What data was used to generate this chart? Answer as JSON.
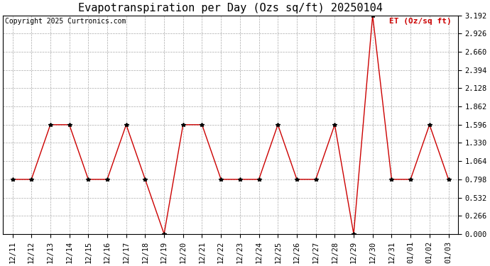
{
  "title": "Evapotranspiration per Day (Ozs sq/ft) 20250104",
  "copyright": "Copyright 2025 Curtronics.com",
  "legend_label": "ET (Oz/sq ft)",
  "dates": [
    "12/11",
    "12/12",
    "12/13",
    "12/14",
    "12/15",
    "12/16",
    "12/17",
    "12/18",
    "12/19",
    "12/20",
    "12/21",
    "12/22",
    "12/23",
    "12/24",
    "12/25",
    "12/26",
    "12/27",
    "12/28",
    "12/29",
    "12/30",
    "12/31",
    "01/01",
    "01/02",
    "01/03"
  ],
  "values": [
    0.798,
    0.798,
    1.596,
    1.596,
    0.798,
    0.798,
    1.596,
    0.798,
    0.0,
    1.596,
    1.596,
    0.798,
    0.798,
    0.798,
    1.596,
    0.798,
    0.798,
    1.596,
    0.0,
    3.192,
    0.798,
    0.798,
    1.596,
    0.798
  ],
  "line_color": "#cc0000",
  "marker_color": "#000000",
  "grid_color": "#aaaaaa",
  "background_color": "#ffffff",
  "ylim_min": 0.0,
  "ylim_max": 3.192,
  "yticks": [
    0.0,
    0.266,
    0.532,
    0.798,
    1.064,
    1.33,
    1.596,
    1.862,
    2.128,
    2.394,
    2.66,
    2.926,
    3.192
  ],
  "title_fontsize": 11,
  "legend_fontsize": 8,
  "copyright_fontsize": 7,
  "tick_fontsize": 7.5
}
